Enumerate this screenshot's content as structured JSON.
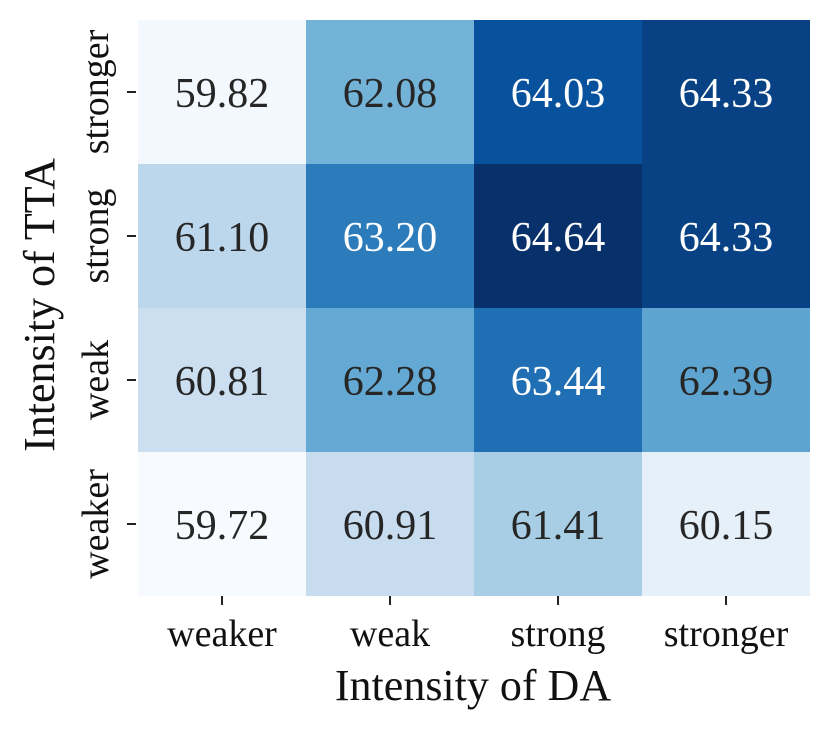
{
  "chart_data": {
    "type": "heatmap",
    "xlabel": "Intensity of DA",
    "ylabel": "Intensity of TTA",
    "x_categories": [
      "weaker",
      "weak",
      "strong",
      "stronger"
    ],
    "y_categories": [
      "stronger",
      "strong",
      "weak",
      "weaker"
    ],
    "values": [
      [
        59.82,
        62.08,
        64.03,
        64.33
      ],
      [
        61.1,
        63.2,
        64.64,
        64.33
      ],
      [
        60.81,
        62.28,
        63.44,
        62.39
      ],
      [
        59.72,
        60.91,
        61.41,
        60.15
      ]
    ],
    "value_labels": [
      [
        "59.82",
        "62.08",
        "64.03",
        "64.33"
      ],
      [
        "61.10",
        "63.20",
        "64.64",
        "64.33"
      ],
      [
        "60.81",
        "62.28",
        "63.44",
        "62.39"
      ],
      [
        "59.72",
        "60.91",
        "61.41",
        "60.15"
      ]
    ],
    "colormap": "Blues",
    "value_range": [
      59.72,
      64.64
    ],
    "colorbar": false,
    "grid": false
  }
}
